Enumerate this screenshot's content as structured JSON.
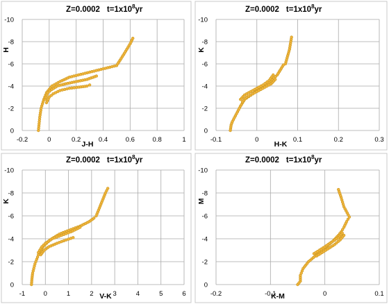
{
  "colors": {
    "marker_fill": "#f0b43c",
    "marker_stroke": "#c8961e",
    "line": "#b98a2a",
    "grid": "#a9a9a9"
  },
  "chart_data": [
    {
      "type": "scatter",
      "title_parts": [
        "Z=0.0002",
        "t=1x10",
        "8",
        "yr"
      ],
      "xlabel": "J-H",
      "ylabel": "H",
      "xlim": [
        -0.2,
        1
      ],
      "ylim": [
        0,
        -10
      ],
      "grid": true,
      "xticks": [
        "-0.2",
        "0",
        "0.2",
        "0.4",
        "0.6",
        "0.8",
        "1"
      ],
      "yticks": [
        "-10",
        "-8",
        "-6",
        "-4",
        "-2",
        "0"
      ],
      "series": [
        {
          "x": [
            -0.08,
            -0.075,
            -0.07,
            -0.06,
            -0.04,
            -0.02,
            0.02,
            0.08,
            0.15,
            0.25,
            0.35,
            0.45,
            0.5,
            0.55,
            0.6,
            0.62
          ],
          "y": [
            0,
            -0.6,
            -1.2,
            -2.0,
            -2.8,
            -3.4,
            -4.0,
            -4.4,
            -4.8,
            -5.1,
            -5.4,
            -5.7,
            -5.85,
            -6.8,
            -7.8,
            -8.3
          ]
        },
        {
          "x": [
            -0.03,
            -0.01,
            0.02,
            0.06,
            0.12,
            0.2,
            0.28,
            0.35
          ],
          "y": [
            -2.8,
            -3.4,
            -3.7,
            -4.0,
            -4.2,
            -4.4,
            -4.6,
            -4.9
          ]
        },
        {
          "x": [
            -0.02,
            0.0,
            0.03,
            0.08,
            0.15,
            0.22,
            0.28,
            0.3
          ],
          "y": [
            -2.5,
            -3.0,
            -3.3,
            -3.6,
            -3.8,
            -3.9,
            -4.0,
            -4.1
          ]
        }
      ]
    },
    {
      "type": "scatter",
      "title_parts": [
        "Z=0.0002",
        "t=1x10",
        "8",
        "yr"
      ],
      "xlabel": "H-K",
      "ylabel": "K",
      "xlim": [
        -0.1,
        0.3
      ],
      "ylim": [
        0,
        -10
      ],
      "grid": true,
      "xticks": [
        "-0.1",
        "0",
        "0.1",
        "0.2",
        "0.3"
      ],
      "yticks": [
        "-10",
        "-8",
        "-6",
        "-4",
        "-2",
        "0"
      ],
      "series": [
        {
          "x": [
            -0.065,
            -0.063,
            -0.06,
            -0.05,
            -0.04,
            -0.03,
            -0.01,
            0.01,
            0.03,
            0.05,
            0.06,
            0.065,
            0.07,
            0.08,
            0.085
          ],
          "y": [
            0,
            -0.5,
            -0.8,
            -1.5,
            -2.2,
            -2.8,
            -3.3,
            -3.8,
            -4.3,
            -5.0,
            -5.6,
            -5.9,
            -6.0,
            -7.3,
            -8.4
          ]
        },
        {
          "x": [
            -0.04,
            -0.03,
            -0.015,
            0.0,
            0.015,
            0.03,
            0.04
          ],
          "y": [
            -2.8,
            -3.2,
            -3.5,
            -3.8,
            -4.1,
            -4.5,
            -5.0
          ]
        },
        {
          "x": [
            -0.035,
            -0.025,
            -0.01,
            0.005,
            0.02,
            0.035,
            0.045
          ],
          "y": [
            -2.6,
            -3.0,
            -3.3,
            -3.6,
            -3.9,
            -4.2,
            -4.6
          ]
        }
      ]
    },
    {
      "type": "scatter",
      "title_parts": [
        "Z=0.0002",
        "t=1x10",
        "8",
        "yr"
      ],
      "xlabel": "V-K",
      "ylabel": "K",
      "xlim": [
        -1,
        6
      ],
      "ylim": [
        0,
        -10
      ],
      "grid": true,
      "xticks": [
        "-1",
        "0",
        "1",
        "2",
        "3",
        "4",
        "5",
        "6"
      ],
      "yticks": [
        "-10",
        "-8",
        "-6",
        "-4",
        "-2",
        "0"
      ],
      "series": [
        {
          "x": [
            -0.6,
            -0.58,
            -0.55,
            -0.45,
            -0.3,
            -0.1,
            0.2,
            0.6,
            1.1,
            1.5,
            1.9,
            2.1,
            2.2,
            2.4,
            2.6,
            2.7
          ],
          "y": [
            0,
            -0.5,
            -1.0,
            -1.8,
            -2.6,
            -3.3,
            -3.9,
            -4.4,
            -4.8,
            -5.1,
            -5.5,
            -5.8,
            -6.0,
            -7.0,
            -8.0,
            -8.4
          ]
        },
        {
          "x": [
            -0.3,
            -0.15,
            0.0,
            0.3,
            0.7,
            1.1,
            1.5
          ],
          "y": [
            -2.8,
            -3.3,
            -3.6,
            -4.0,
            -4.3,
            -4.6,
            -5.0
          ]
        },
        {
          "x": [
            -0.2,
            -0.05,
            0.15,
            0.5,
            0.9,
            1.2
          ],
          "y": [
            -2.6,
            -3.0,
            -3.3,
            -3.6,
            -3.9,
            -4.1
          ]
        }
      ]
    },
    {
      "type": "scatter",
      "title_parts": [
        "Z=0.0002",
        "t=1x10",
        "8",
        "yr"
      ],
      "xlabel": "K-M",
      "ylabel": "M",
      "xlim": [
        -0.2,
        0.1
      ],
      "ylim": [
        0,
        -10
      ],
      "grid": true,
      "xticks": [
        "-0.2",
        "-0.1",
        "0",
        "0.1"
      ],
      "yticks": [
        "-10",
        "-8",
        "-6",
        "-4",
        "-2",
        "0"
      ],
      "series": [
        {
          "x": [
            -0.05,
            -0.045,
            -0.045,
            -0.04,
            -0.03,
            -0.015,
            0.0,
            0.015,
            0.025,
            0.03,
            0.035,
            0.04,
            0.045,
            0.035,
            0.03,
            0.025
          ],
          "y": [
            0,
            -0.3,
            -0.8,
            -1.4,
            -2.0,
            -2.6,
            -3.2,
            -3.8,
            -4.3,
            -4.6,
            -5.0,
            -5.5,
            -5.9,
            -6.8,
            -7.6,
            -8.3
          ]
        },
        {
          "x": [
            -0.02,
            -0.01,
            0.0,
            0.012,
            0.025,
            0.032
          ],
          "y": [
            -2.7,
            -3.0,
            -3.3,
            -3.7,
            -4.1,
            -4.5
          ]
        },
        {
          "x": [
            -0.015,
            -0.005,
            0.005,
            0.018,
            0.028,
            0.035
          ],
          "y": [
            -2.5,
            -2.8,
            -3.1,
            -3.5,
            -3.9,
            -4.3
          ]
        }
      ]
    }
  ]
}
